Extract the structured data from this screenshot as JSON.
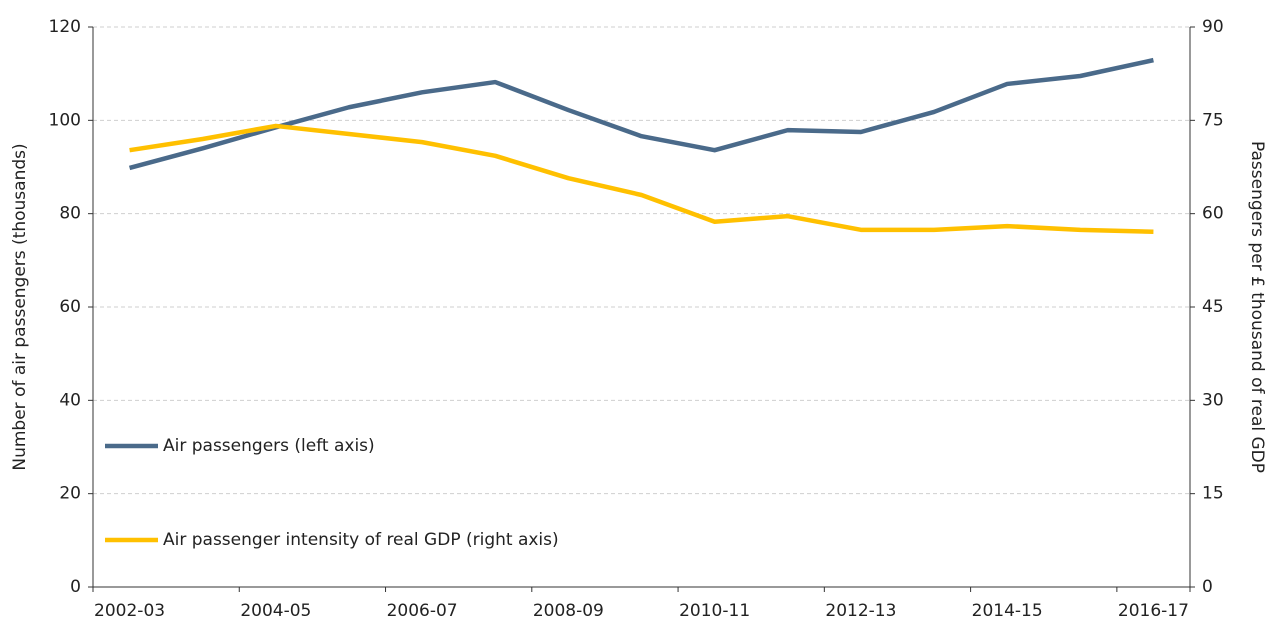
{
  "chart_data": {
    "type": "line",
    "categories": [
      "2002-03",
      null,
      "2004-05",
      null,
      "2006-07",
      null,
      "2008-09",
      null,
      "2010-11",
      null,
      "2012-13",
      null,
      "2014-15",
      null,
      "2016-17"
    ],
    "series": [
      {
        "name": "Air passengers (left axis)",
        "color": "#4a6a8a",
        "values": [
          89.8,
          94,
          98.5,
          102.8,
          106,
          108.2,
          102.2,
          96.6,
          93.6,
          97.9,
          97.5,
          101.8,
          107.8,
          109.5,
          112.9
        ]
      },
      {
        "name": "Air passenger intensity of real GDP (right axis)",
        "color": "#ffc000",
        "axis": "y2",
        "values": [
          70.2,
          72,
          74.1,
          72.8,
          71.5,
          69.3,
          65.7,
          63,
          58.7,
          59.6,
          57.4,
          57.4,
          58,
          57.4,
          57.1
        ]
      }
    ],
    "ylabel": "Number of air passengers (thousands)",
    "y2label": "Passengers per £ thousand of real GDP",
    "ylim": [
      0,
      120
    ],
    "yticks": [
      0,
      20,
      40,
      60,
      80,
      100,
      120
    ],
    "y2lim": [
      0,
      90
    ],
    "y2ticks": [
      0,
      15,
      30,
      45,
      60,
      75,
      90
    ],
    "grid": true,
    "legend": "lower left"
  }
}
